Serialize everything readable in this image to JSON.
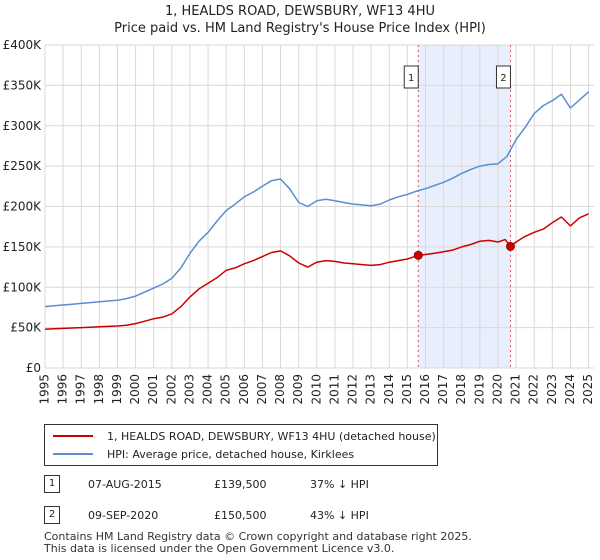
{
  "header": {
    "title": "1, HEALDS ROAD, DEWSBURY, WF13 4HU",
    "subtitle": "Price paid vs. HM Land Registry's House Price Index (HPI)"
  },
  "chart_data": {
    "type": "line",
    "title": "1, HEALDS ROAD, DEWSBURY, WF13 4HU",
    "subtitle": "Price paid vs. HM Land Registry's House Price Index (HPI)",
    "xlabel": "",
    "ylabel": "",
    "xlim": [
      1995,
      2025.3
    ],
    "ylim": [
      0,
      400000
    ],
    "x_ticks": [
      "1995",
      "1996",
      "1997",
      "1998",
      "1999",
      "2000",
      "2001",
      "2002",
      "2003",
      "2004",
      "2005",
      "2006",
      "2007",
      "2008",
      "2009",
      "2010",
      "2011",
      "2012",
      "2013",
      "2014",
      "2015",
      "2016",
      "2017",
      "2018",
      "2019",
      "2020",
      "2021",
      "2022",
      "2023",
      "2024",
      "2025"
    ],
    "y_ticks": [
      {
        "value": 0,
        "label": "£0"
      },
      {
        "value": 50000,
        "label": "£50K"
      },
      {
        "value": 100000,
        "label": "£100K"
      },
      {
        "value": 150000,
        "label": "£150K"
      },
      {
        "value": 200000,
        "label": "£200K"
      },
      {
        "value": 250000,
        "label": "£250K"
      },
      {
        "value": 300000,
        "label": "£300K"
      },
      {
        "value": 350000,
        "label": "£350K"
      },
      {
        "value": 400000,
        "label": "£400K"
      }
    ],
    "grid": true,
    "shaded_period": [
      2015.6,
      2020.69
    ],
    "series": [
      {
        "name": "1, HEALDS ROAD, DEWSBURY, WF13 4HU (detached house)",
        "color": "#cc0000",
        "x": [
          1995.0,
          1995.5,
          1996.0,
          1996.5,
          1997.0,
          1997.5,
          1998.0,
          1998.5,
          1999.0,
          1999.5,
          2000.0,
          2000.5,
          2001.0,
          2001.5,
          2002.0,
          2002.5,
          2003.0,
          2003.5,
          2004.0,
          2004.5,
          2005.0,
          2005.5,
          2006.0,
          2006.5,
          2007.0,
          2007.5,
          2008.0,
          2008.5,
          2009.0,
          2009.5,
          2010.0,
          2010.5,
          2011.0,
          2011.5,
          2012.0,
          2012.5,
          2013.0,
          2013.5,
          2014.0,
          2014.5,
          2015.0,
          2015.6,
          2016.0,
          2016.5,
          2017.0,
          2017.5,
          2018.0,
          2018.5,
          2019.0,
          2019.5,
          2020.0,
          2020.4,
          2020.69,
          2021.0,
          2021.5,
          2022.0,
          2022.5,
          2023.0,
          2023.5,
          2024.0,
          2024.5,
          2025.0
        ],
        "y": [
          48000,
          48500,
          49000,
          49500,
          50000,
          50500,
          51000,
          51500,
          52000,
          53000,
          55000,
          58000,
          61000,
          63000,
          67000,
          76000,
          88000,
          98000,
          105000,
          112000,
          121000,
          124000,
          129000,
          133000,
          138000,
          143000,
          145000,
          139000,
          130000,
          125000,
          131000,
          133000,
          132000,
          130000,
          129000,
          128000,
          127000,
          128000,
          131000,
          133000,
          135000,
          139500,
          140500,
          142000,
          144000,
          146000,
          150000,
          153000,
          157000,
          158000,
          156000,
          159000,
          150500,
          156000,
          163000,
          168000,
          172000,
          180000,
          187000,
          176000,
          186000,
          191000
        ]
      },
      {
        "name": "HPI: Average price, detached house, Kirklees",
        "color": "#5b8dd0",
        "x": [
          1995.0,
          1995.5,
          1996.0,
          1996.5,
          1997.0,
          1997.5,
          1998.0,
          1998.5,
          1999.0,
          1999.5,
          2000.0,
          2000.5,
          2001.0,
          2001.5,
          2002.0,
          2002.5,
          2003.0,
          2003.5,
          2004.0,
          2004.5,
          2005.0,
          2005.5,
          2006.0,
          2006.5,
          2007.0,
          2007.5,
          2008.0,
          2008.5,
          2009.0,
          2009.5,
          2010.0,
          2010.5,
          2011.0,
          2011.5,
          2012.0,
          2012.5,
          2013.0,
          2013.5,
          2014.0,
          2014.5,
          2015.0,
          2015.5,
          2016.0,
          2016.5,
          2017.0,
          2017.5,
          2018.0,
          2018.5,
          2019.0,
          2019.5,
          2020.0,
          2020.5,
          2021.0,
          2021.5,
          2022.0,
          2022.5,
          2023.0,
          2023.5,
          2024.0,
          2024.5,
          2025.0
        ],
        "y": [
          76000,
          77000,
          78000,
          79000,
          80000,
          81000,
          82000,
          83000,
          84000,
          86000,
          89000,
          94000,
          99000,
          104000,
          111000,
          124000,
          142000,
          157000,
          168000,
          182000,
          195000,
          203000,
          212000,
          218000,
          225000,
          232000,
          234000,
          222000,
          205000,
          200000,
          207000,
          209000,
          207000,
          205000,
          203000,
          202000,
          201000,
          203000,
          208000,
          212000,
          215000,
          219000,
          222000,
          226000,
          230000,
          235000,
          241000,
          246000,
          250000,
          252000,
          253000,
          262000,
          283000,
          298000,
          315000,
          325000,
          331000,
          339000,
          322000,
          332000,
          342000
        ]
      }
    ],
    "markers": [
      {
        "label": "1",
        "x": 2015.6,
        "y": 139500
      },
      {
        "label": "2",
        "x": 2020.69,
        "y": 150500
      }
    ]
  },
  "legend": {
    "items": [
      {
        "label": "1, HEALDS ROAD, DEWSBURY, WF13 4HU (detached house)",
        "color": "#cc0000"
      },
      {
        "label": "HPI: Average price, detached house, Kirklees",
        "color": "#5b8dd0"
      }
    ]
  },
  "sales": [
    {
      "num": "1",
      "date": "07-AUG-2015",
      "price": "£139,500",
      "hpi": "37% ↓ HPI"
    },
    {
      "num": "2",
      "date": "09-SEP-2020",
      "price": "£150,500",
      "hpi": "43% ↓ HPI"
    }
  ],
  "footer": {
    "line1": "Contains HM Land Registry data © Crown copyright and database right 2025.",
    "line2": "This data is licensed under the Open Government Licence v3.0."
  }
}
